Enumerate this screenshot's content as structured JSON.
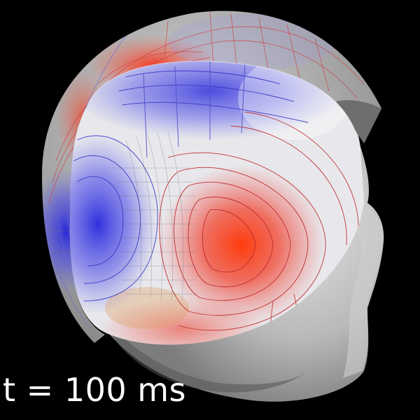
{
  "visualization": {
    "time_label": "t = 100 ms",
    "background_color": "#000000",
    "colors": {
      "head_surface": "#bfbfbf",
      "positive": "#ff2a00",
      "negative": "#3a3aff",
      "contour_positive": "#e03030",
      "contour_negative": "#3030c0"
    },
    "surfaces": [
      "head-surface",
      "outer-helmet-surface",
      "inner-brain-surface"
    ],
    "icons": []
  }
}
